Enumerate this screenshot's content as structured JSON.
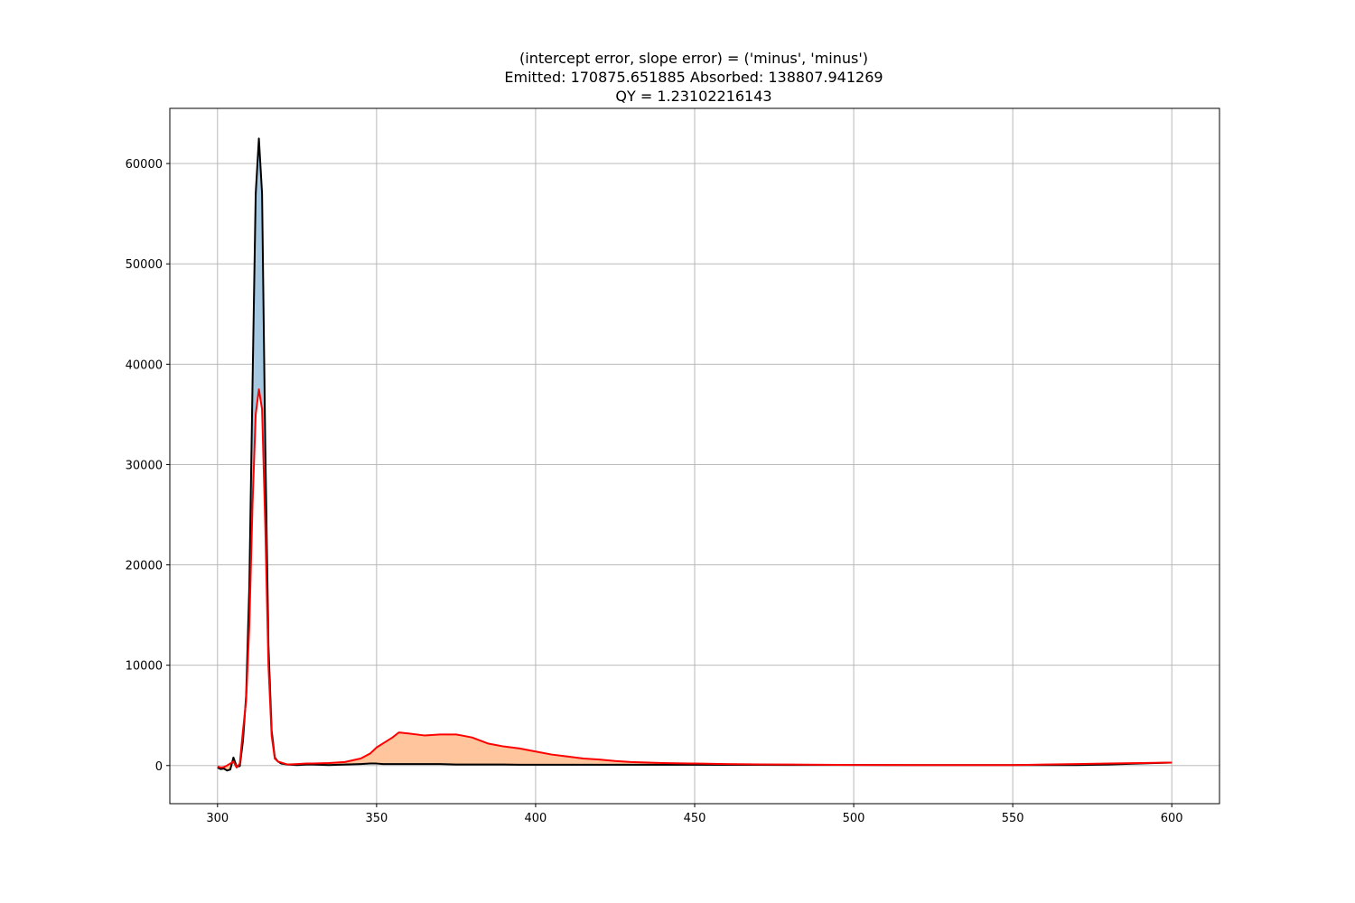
{
  "chart_data": {
    "type": "line",
    "title_lines": [
      "(intercept error, slope error) = ('minus', 'minus')",
      "Emitted: 170875.651885   Absorbed: 138807.941269",
      "QY = 1.23102216143"
    ],
    "xlabel": "",
    "ylabel": "",
    "xlim": [
      285,
      615
    ],
    "ylim": [
      -3800,
      65500
    ],
    "xticks": [
      300,
      350,
      400,
      450,
      500,
      550,
      600
    ],
    "yticks": [
      0,
      10000,
      20000,
      30000,
      40000,
      50000,
      60000
    ],
    "grid": true,
    "colors": {
      "black_series": "#000000",
      "red_series": "#ff0000",
      "absorbed_fill": "#a6c8e0",
      "emitted_fill": "#ffc59c",
      "grid": "#b0b0b0"
    },
    "x": [
      300,
      301,
      302,
      303,
      304,
      305,
      306,
      307,
      308,
      309,
      310,
      311,
      312,
      313,
      314,
      315,
      316,
      317,
      318,
      319,
      320,
      322,
      325,
      328,
      330,
      335,
      340,
      345,
      348,
      350,
      352,
      355,
      357,
      360,
      365,
      370,
      375,
      380,
      385,
      390,
      395,
      400,
      405,
      410,
      415,
      420,
      425,
      430,
      440,
      450,
      460,
      470,
      480,
      490,
      500,
      510,
      520,
      530,
      540,
      550,
      560,
      570,
      580,
      590,
      600
    ],
    "series": [
      {
        "values": [
          -200,
          -350,
          -300,
          -500,
          -400,
          800,
          -100,
          -50,
          2500,
          7000,
          18000,
          38000,
          57000,
          62500,
          57000,
          32000,
          12000,
          3500,
          800,
          400,
          200,
          100,
          50,
          100,
          100,
          50,
          100,
          150,
          200,
          200,
          150,
          150,
          150,
          150,
          150,
          150,
          100,
          100,
          100,
          100,
          80,
          80,
          80,
          80,
          80,
          80,
          80,
          80,
          80,
          80,
          70,
          70,
          60,
          60,
          60,
          50,
          50,
          50,
          50,
          50,
          50,
          50,
          100,
          200,
          300
        ]
      },
      {
        "values": [
          -100,
          -200,
          -150,
          0,
          200,
          400,
          -200,
          200,
          3500,
          6500,
          14000,
          26000,
          35000,
          37500,
          35500,
          24000,
          10000,
          3000,
          700,
          400,
          300,
          100,
          150,
          200,
          200,
          250,
          350,
          700,
          1200,
          1800,
          2200,
          2800,
          3300,
          3200,
          3000,
          3100,
          3100,
          2800,
          2200,
          1900,
          1700,
          1400,
          1100,
          900,
          700,
          600,
          450,
          350,
          250,
          200,
          150,
          120,
          100,
          80,
          60,
          60,
          50,
          50,
          50,
          50,
          100,
          150,
          200,
          250,
          300
        ]
      }
    ]
  }
}
